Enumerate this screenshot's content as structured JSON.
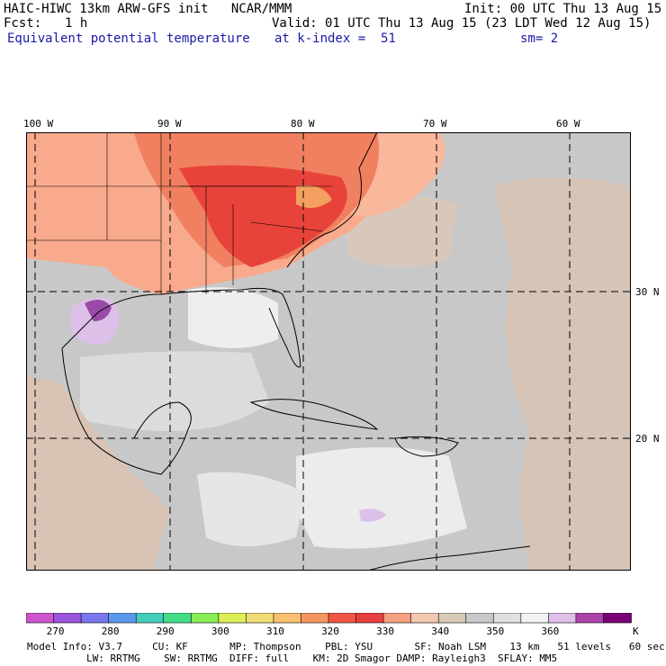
{
  "header": {
    "title_left": "HAIC-HIWC 13km ARW-GFS init   NCAR/MMM",
    "init": "Init: 00 UTC Thu 13 Aug 15",
    "fcst_label": "Fcst:",
    "fcst_value": "1 h",
    "valid": "Valid: 01 UTC Thu 13 Aug 15 (23 LDT Wed 12 Aug 15)",
    "field": "Equivalent potential temperature",
    "level": "at k-index =  51",
    "smooth": "sm= 2"
  },
  "map": {
    "lon_labels": [
      "100 W",
      "90 W",
      "80 W",
      "70 W",
      "60 W"
    ],
    "lat_labels": [
      "30 N",
      "20 N"
    ],
    "colors": {
      "ocean_gray": "#c8c8c8",
      "light_gray": "#e6e6e6",
      "tan": "#d8c3b4",
      "salmon": "#f9a98c",
      "orange": "#f08060",
      "red": "#e8433a",
      "purple": "#9a4aa8",
      "lavender": "#dcc0e8"
    }
  },
  "colorbar": {
    "unit": "K",
    "tick_labels": [
      "270",
      "280",
      "290",
      "300",
      "310",
      "320",
      "330",
      "340",
      "350",
      "360"
    ],
    "colors": [
      "#cc55cc",
      "#9a55dd",
      "#7a77ee",
      "#5a99ee",
      "#44ccbb",
      "#44dd88",
      "#88ee55",
      "#ddee55",
      "#eedd77",
      "#f8c070",
      "#f59560",
      "#ee5544",
      "#e64040",
      "#f5a080",
      "#f2c8b0",
      "#d8c8b8",
      "#c8c8c8",
      "#e0e0e0",
      "#f2f2f2",
      "#e0c0e8",
      "#aa44aa",
      "#7a0077"
    ]
  },
  "model_info": {
    "line1": "Model Info: V3.7     CU: KF       MP: Thompson    PBL: YSU       SF: Noah LSM    13 km   51 levels   60 sec",
    "line2": "LW: RRTMG    SW: RRTMG  DIFF: full    KM: 2D Smagor DAMP: Rayleigh3  SFLAY: MM5"
  }
}
